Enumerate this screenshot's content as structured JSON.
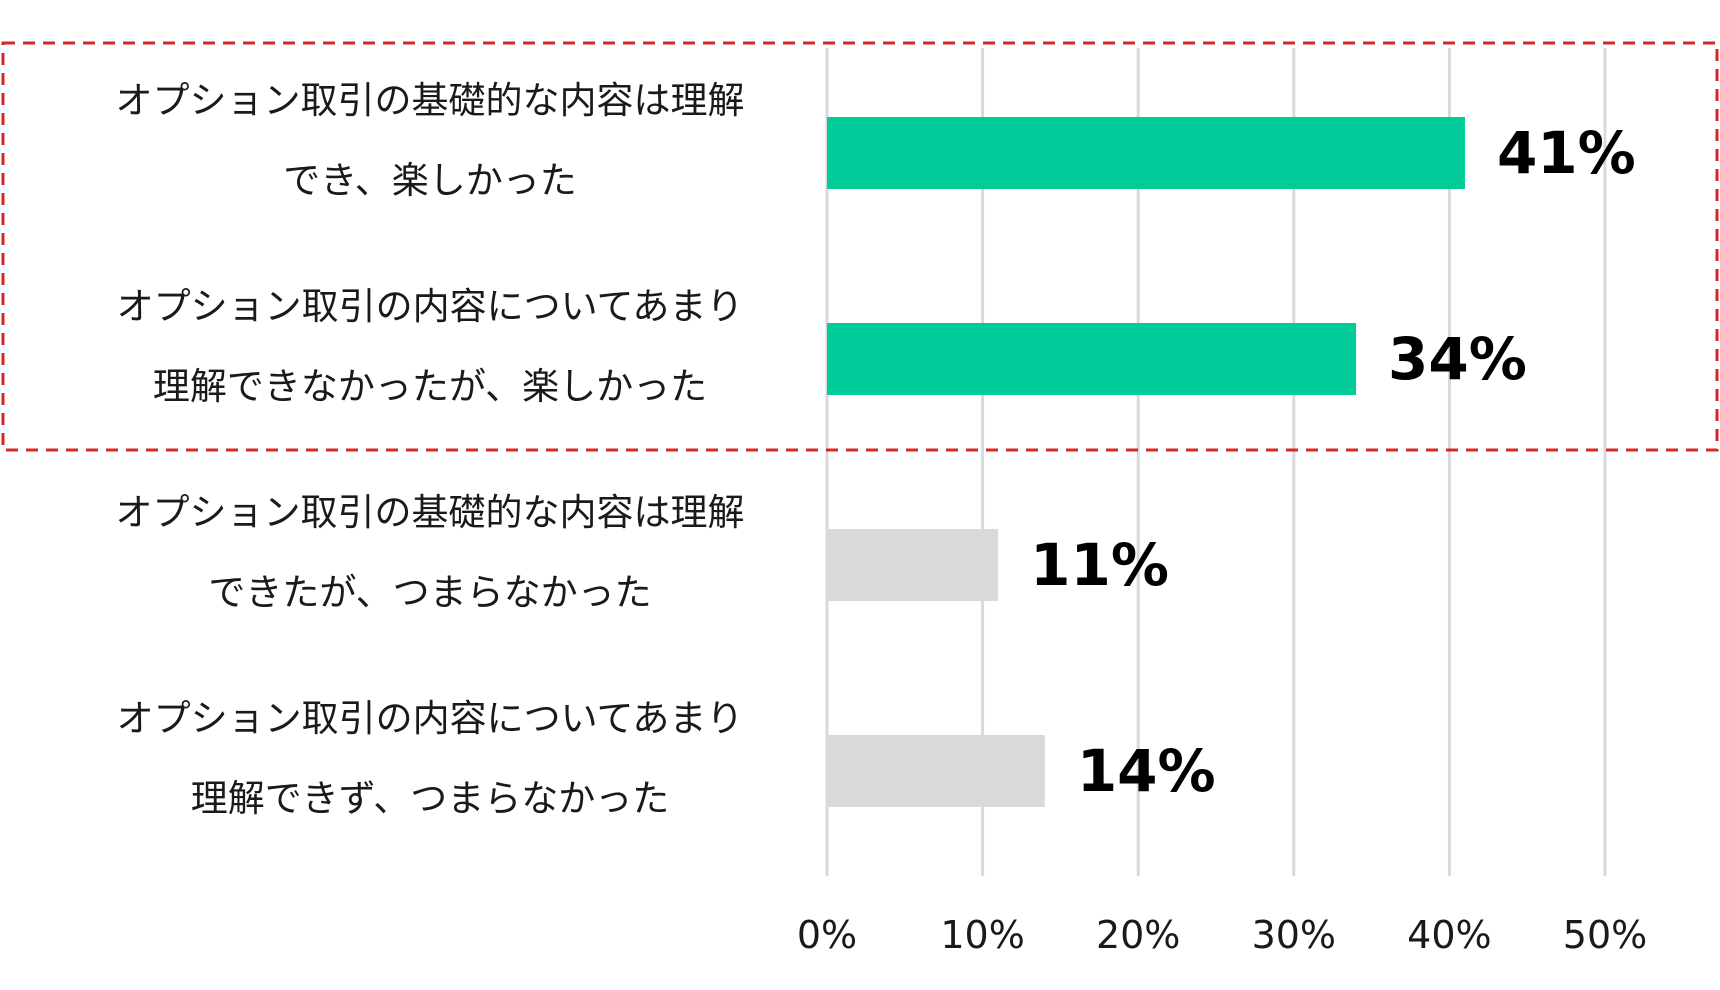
{
  "chart_data": {
    "type": "bar",
    "orientation": "horizontal",
    "categories": [
      [
        "オプション取引の基礎的な内容は理解",
        "でき、楽しかった"
      ],
      [
        "オプション取引の内容についてあまり",
        "理解できなかったが、楽しかった"
      ],
      [
        "オプション取引の基礎的な内容は理解",
        "できたが、つまらなかった"
      ],
      [
        "オプション取引の内容についてあまり",
        "理解できず、つまらなかった"
      ]
    ],
    "values": [
      41,
      34,
      11,
      14
    ],
    "value_labels": [
      "41%",
      "34%",
      "11%",
      "14%"
    ],
    "bar_colors": [
      "#00cc99",
      "#00cc99",
      "#d9d9d9",
      "#d9d9d9"
    ],
    "xlim": [
      0,
      50
    ],
    "x_ticks": [
      0,
      10,
      20,
      30,
      40,
      50
    ],
    "x_tick_labels": [
      "0%",
      "10%",
      "20%",
      "30%",
      "40%",
      "50%"
    ],
    "grid": true,
    "gridline_color": "#d9d9d9",
    "highlight": {
      "categories": [
        0,
        1
      ],
      "style": "dashed",
      "color": "#d62728"
    }
  }
}
